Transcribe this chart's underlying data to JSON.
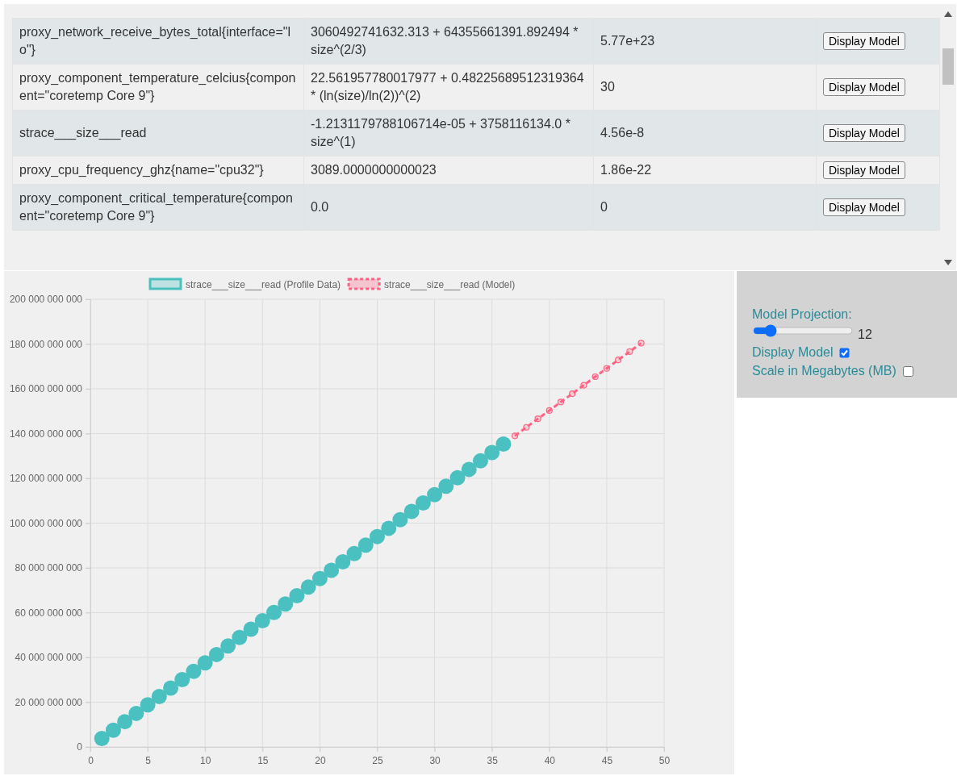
{
  "chart_data": [
    {
      "type": "other",
      "annotations": [
        "proxy_network_receive_bytes_total{interface=\"lo\"}",
        "3060492741632.313 + 64355661391.892494 * size^(2/3)",
        "5.77e+23",
        "Display Model",
        "proxy_component_temperature_celcius{component=\"coretemp Core 9\"}",
        "22.561957780017977 + 0.48225689512319364 * (ln(size)/ln(2))^(2)",
        "30",
        "Display Model",
        "strace___size___read",
        "-1.2131179788106714e-05 + 3758116134.0 * size^(1)",
        "4.56e-8",
        "Display Model",
        "proxy_cpu_frequency_ghz{name=\"cpu32\"}",
        "3089.0000000000023",
        "1.86e-22",
        "Display Model",
        "proxy_component_critical_temperature{component=\"coretemp Core 9\"}",
        "0.0",
        "0",
        "Display Model"
      ]
    },
    {
      "type": "scatter",
      "legend": "top",
      "grid": true,
      "xlim": [
        0,
        50
      ],
      "xticks": [
        0,
        5,
        10,
        15,
        20,
        25,
        30,
        35,
        40,
        45,
        50
      ],
      "ylim": [
        0,
        200000000000
      ],
      "yticks": [
        0,
        {
          "value": 20000000000,
          "label": "20 000 000 000"
        },
        {
          "value": 40000000000,
          "label": "40 000 000 000"
        },
        {
          "value": 60000000000,
          "label": "60 000 000 000"
        },
        {
          "value": 80000000000,
          "label": "80 000 000 000"
        },
        {
          "value": 100000000000,
          "label": "100 000 000 000"
        },
        {
          "value": 120000000000,
          "label": "120 000 000 000"
        },
        {
          "value": 140000000000,
          "label": "140 000 000 000"
        },
        {
          "value": 160000000000,
          "label": "160 000 000 000"
        },
        {
          "value": 180000000000,
          "label": "180 000 000 000"
        },
        {
          "value": 200000000000,
          "label": "200 000 000 000"
        }
      ],
      "series": [
        {
          "name": "strace___size___read (Profile Data)",
          "type": "scatter",
          "marker": "circle",
          "color": "#4bc0c0",
          "x": [
            1,
            2,
            3,
            4,
            5,
            6,
            7,
            8,
            9,
            10,
            11,
            12,
            13,
            14,
            15,
            16,
            17,
            18,
            19,
            20,
            21,
            22,
            23,
            24,
            25,
            26,
            27,
            28,
            29,
            30,
            31,
            32,
            33,
            34,
            35,
            36
          ],
          "values": [
            3800000000,
            7500000000,
            11300000000,
            15000000000,
            18800000000,
            22500000000,
            26300000000,
            30100000000,
            33800000000,
            37600000000,
            41300000000,
            45100000000,
            48900000000,
            52600000000,
            56400000000,
            60100000000,
            63900000000,
            67600000000,
            71400000000,
            75200000000,
            78900000000,
            82700000000,
            86400000000,
            90200000000,
            94000000000,
            97700000000,
            101500000000,
            105200000000,
            109000000000,
            112700000000,
            116500000000,
            120300000000,
            124000000000,
            127800000000,
            131500000000,
            135300000000
          ]
        },
        {
          "name": "strace___size___read (Model)",
          "type": "line",
          "marker": "circle",
          "line_style": "dashed",
          "color": "#ff6384",
          "x": [
            37,
            38,
            39,
            40,
            41,
            42,
            43,
            44,
            45,
            46,
            47,
            48
          ],
          "values": [
            139000000000,
            142800000000,
            146600000000,
            150300000000,
            154100000000,
            157800000000,
            161600000000,
            165400000000,
            169100000000,
            172900000000,
            176600000000,
            180400000000
          ]
        }
      ]
    },
    {
      "type": "other",
      "annotations": [
        "Model Projection:",
        "12",
        "Display Model",
        "Scale in Megabytes (MB)"
      ]
    }
  ]
}
